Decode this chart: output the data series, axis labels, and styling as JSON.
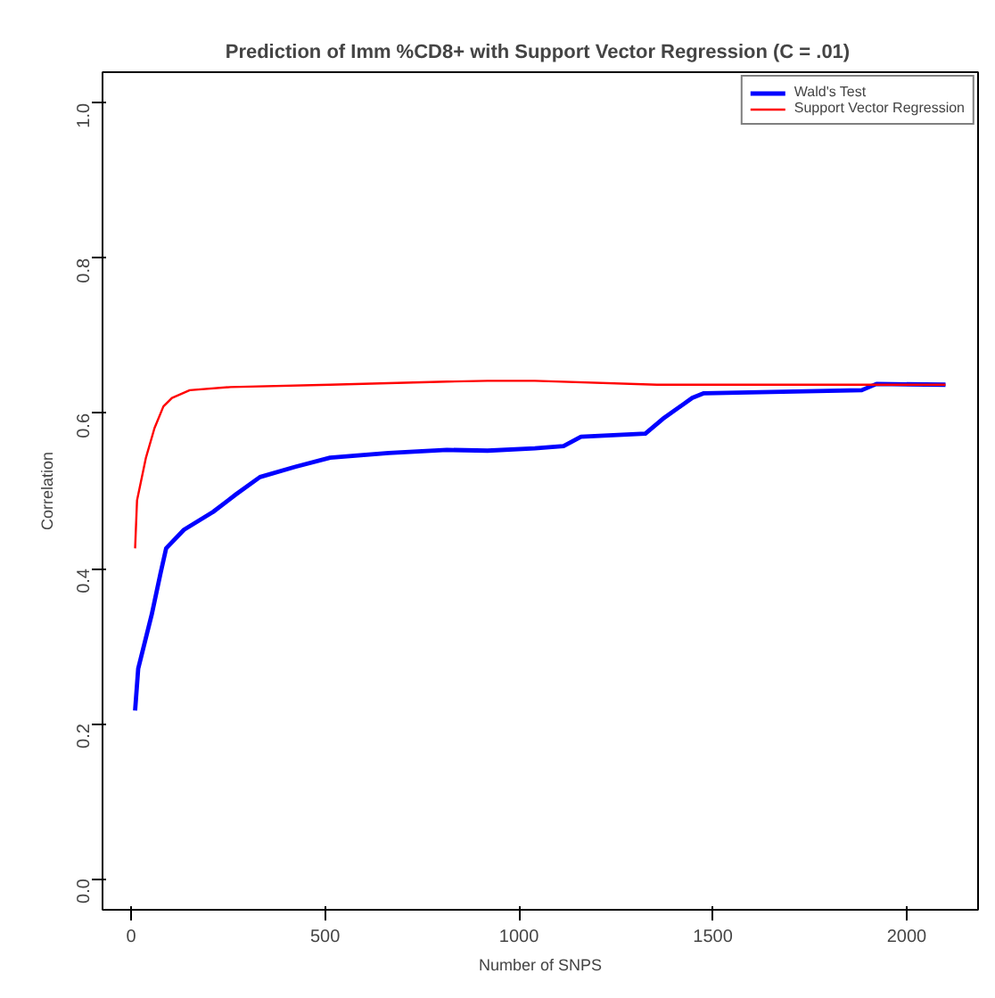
{
  "chart_data": {
    "type": "line",
    "title": "Prediction of  Imm %CD8+ with Support Vector Regression (C = .01)",
    "xlabel": "Number of SNPS",
    "ylabel": "Correlation",
    "xlim": [
      -74,
      2184
    ],
    "ylim": [
      -0.04,
      1.04
    ],
    "xticks": [
      0,
      500,
      1000,
      1500,
      2000
    ],
    "yticks": [
      {
        "value": 0,
        "label": "0.0"
      },
      {
        "value": 0.2,
        "label": "0.2"
      },
      {
        "value": 0.4,
        "label": "0.4"
      },
      {
        "value": 0.6,
        "label": "0.6"
      },
      {
        "value": 0.8,
        "label": "0.8"
      },
      {
        "value": 1.0,
        "label": "1.0"
      }
    ],
    "grid": false,
    "legend": "top right",
    "marker": "none",
    "line_style": "solid",
    "series": [
      {
        "name": "Wald's Test",
        "color": "#0000ff",
        "x": [
          10,
          18,
          53,
          76,
          90,
          136,
          211,
          271,
          332,
          422,
          513,
          664,
          814,
          919,
          1041,
          1115,
          1160,
          1326,
          1371,
          1447,
          1477,
          1884,
          1922,
          2100
        ],
        "values": [
          0.217,
          0.271,
          0.341,
          0.395,
          0.426,
          0.45,
          0.473,
          0.496,
          0.518,
          0.531,
          0.543,
          0.549,
          0.553,
          0.552,
          0.555,
          0.558,
          0.57,
          0.574,
          0.593,
          0.62,
          0.626,
          0.63,
          0.638,
          0.637
        ]
      },
      {
        "name": "Support Vector Regression",
        "color": "#ff0000",
        "x": [
          10,
          15,
          38,
          60,
          83,
          105,
          151,
          256,
          513,
          814,
          919,
          1041,
          1356,
          2100
        ],
        "values": [
          0.426,
          0.488,
          0.543,
          0.581,
          0.609,
          0.62,
          0.63,
          0.634,
          0.637,
          0.641,
          0.642,
          0.642,
          0.637,
          0.637
        ]
      }
    ]
  }
}
